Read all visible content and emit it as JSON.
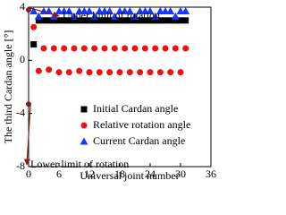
{
  "chart_data": {
    "type": "scatter",
    "x_label": "Universal joint number",
    "y_label": "The third Cardan angle [°]",
    "xlim": [
      0,
      36
    ],
    "xticks": [
      0,
      6,
      12,
      18,
      24,
      30,
      36
    ],
    "ylim": [
      -8,
      4
    ],
    "yticks": [
      -8,
      -4,
      0,
      4
    ],
    "legend": "lower right",
    "x": [
      1,
      2,
      3,
      4,
      5,
      6,
      7,
      8,
      9,
      10,
      11,
      12,
      13,
      14,
      15,
      16,
      17,
      18,
      19,
      20,
      21,
      22,
      23,
      24,
      25,
      26,
      27,
      28,
      29,
      30,
      31
    ],
    "series": [
      {
        "name": "Initial Cardan angle",
        "color": "#000000",
        "marker": "square",
        "values": [
          1.2,
          3.0,
          3.0,
          3.0,
          3.0,
          3.0,
          3.0,
          3.0,
          3.0,
          3.0,
          3.0,
          3.0,
          3.0,
          3.0,
          3.0,
          3.0,
          3.0,
          3.0,
          3.0,
          3.0,
          3.0,
          3.0,
          3.0,
          3.0,
          3.0,
          3.0,
          3.0,
          3.0,
          3.0,
          3.0,
          3.0
        ]
      },
      {
        "name": "Relative rotation angle",
        "color": "#ee1111",
        "marker": "circle",
        "values": [
          2.5,
          -0.8,
          0.9,
          -0.7,
          0.9,
          -0.9,
          0.9,
          -0.9,
          0.9,
          -0.8,
          0.9,
          -0.9,
          0.9,
          -0.9,
          0.9,
          -0.9,
          0.9,
          -0.9,
          0.9,
          -0.9,
          0.9,
          -0.9,
          0.9,
          -0.9,
          0.9,
          -0.9,
          0.9,
          -0.9,
          0.9,
          -0.9,
          0.9
        ]
      },
      {
        "name": "Current  Cardan angle",
        "color": "#1a35ff",
        "marker": "triangle",
        "values": [
          3.7,
          3.3,
          3.7,
          3.7,
          3.3,
          3.7,
          3.7,
          3.7,
          3.3,
          3.7,
          3.7,
          3.7,
          3.3,
          3.7,
          3.7,
          3.7,
          3.3,
          3.7,
          3.7,
          3.7,
          3.3,
          3.7,
          3.7,
          3.7,
          3.3,
          3.7,
          3.7,
          3.7,
          3.3,
          3.7,
          3.7
        ]
      }
    ],
    "annotations": [
      {
        "text": "Upper limit of rotation",
        "x": 0,
        "y": 3.8
      },
      {
        "text": "Lower limit of rotation",
        "x": 0,
        "y": -3.3
      }
    ]
  }
}
